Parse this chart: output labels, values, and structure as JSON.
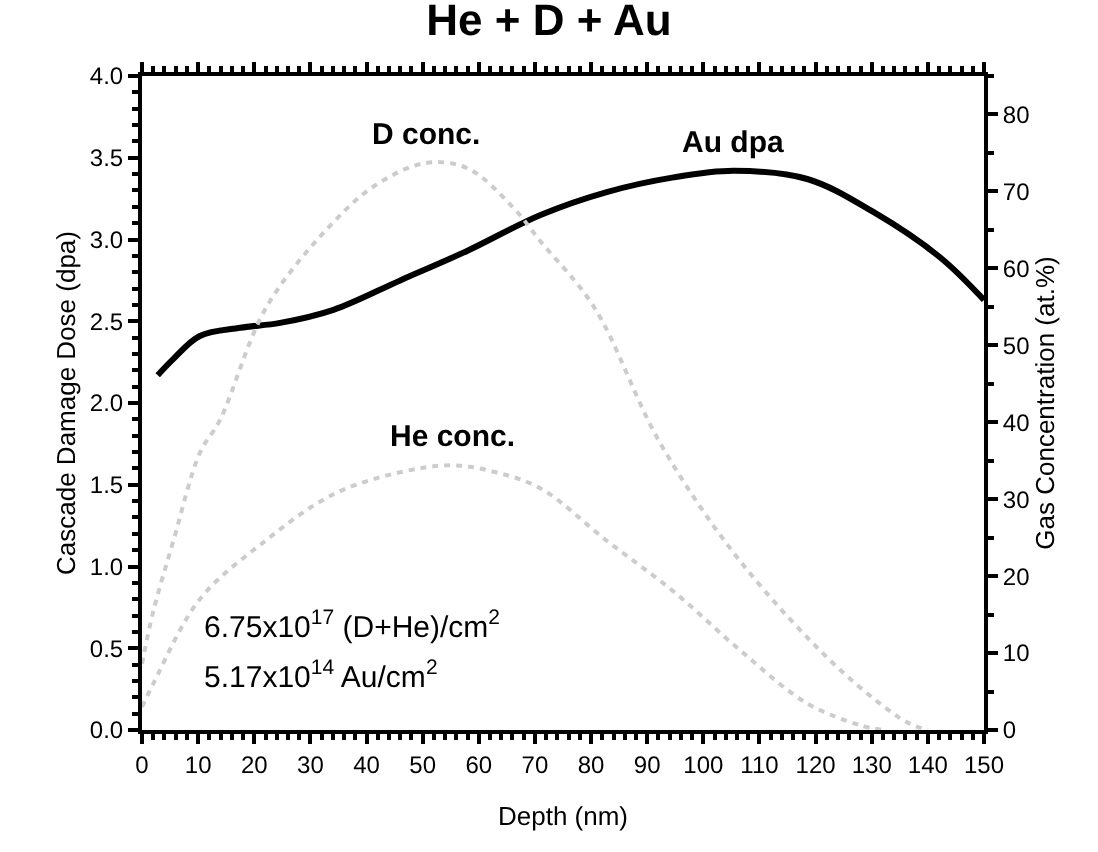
{
  "chart_data": {
    "type": "line",
    "title": "He + D + Au",
    "xlabel": "Depth (nm)",
    "ylabel": "Cascade Damage Dose (dpa)",
    "y2label": "Gas Concentration (at.%)",
    "xlim": [
      0,
      150
    ],
    "xticks": [
      0,
      10,
      20,
      30,
      40,
      50,
      60,
      70,
      80,
      90,
      100,
      110,
      120,
      130,
      140,
      150
    ],
    "ylim": [
      0,
      4.0
    ],
    "yticks": [
      {
        "value": 0,
        "label": "0.0"
      },
      {
        "value": 0.5,
        "label": "0.5"
      },
      {
        "value": 1,
        "label": "1.0"
      },
      {
        "value": 1.5,
        "label": "1.5"
      },
      {
        "value": 2,
        "label": "2.0"
      },
      {
        "value": 2.5,
        "label": "2.5"
      },
      {
        "value": 3,
        "label": "3.0"
      },
      {
        "value": 3.5,
        "label": "3.5"
      },
      {
        "value": 4,
        "label": "4.0"
      }
    ],
    "y2lim": [
      0,
      85
    ],
    "y2ticks": [
      0,
      10,
      20,
      30,
      40,
      50,
      60,
      70,
      80
    ],
    "legend": false,
    "series": [
      {
        "name": "Au dpa",
        "color": "#000000",
        "line_style": "solid",
        "x": [
          2.8,
          5.6,
          10.3,
          17.5,
          24.6,
          34.1,
          46,
          57.9,
          71,
          82.8,
          94.7,
          105.4,
          118.5,
          130.2,
          142.2,
          150
        ],
        "values": [
          2.17,
          2.27,
          2.41,
          2.46,
          2.49,
          2.57,
          2.75,
          2.93,
          3.15,
          3.29,
          3.38,
          3.42,
          3.37,
          3.17,
          2.89,
          2.63
        ]
      },
      {
        "name": "D conc.",
        "color": "#cccccc",
        "line_style": "dotted",
        "axis": "y2",
        "x": [
          0,
          2,
          5.6,
          10.3,
          13.9,
          22.2,
          34.1,
          42,
          50.6,
          58,
          66,
          71,
          80.5,
          92.3,
          106.5,
          124.4,
          136.3,
          140
        ],
        "values": [
          8.6,
          15.4,
          24.6,
          36,
          40.3,
          55,
          66,
          71,
          73.7,
          73,
          68,
          63.5,
          55,
          37.3,
          22,
          7.8,
          1,
          0
        ]
      },
      {
        "name": "He conc.",
        "color": "#cccccc",
        "line_style": "dotted",
        "axis": "y2",
        "x": [
          0,
          2,
          10.3,
          22,
          34,
          46,
          55.4,
          63,
          71,
          82.8,
          94.7,
          106.5,
          118.4,
          128,
          132
        ],
        "values": [
          3,
          6,
          17,
          24.6,
          30.6,
          33.5,
          34.4,
          33.5,
          31.4,
          24.6,
          18,
          10.4,
          3.5,
          0.6,
          0
        ]
      }
    ],
    "annotations": [
      "6.75x10$^{17}$ (D+He)/cm$^{2}$",
      "5.17x10$^{14}$ Au/cm$^{2}$"
    ]
  }
}
